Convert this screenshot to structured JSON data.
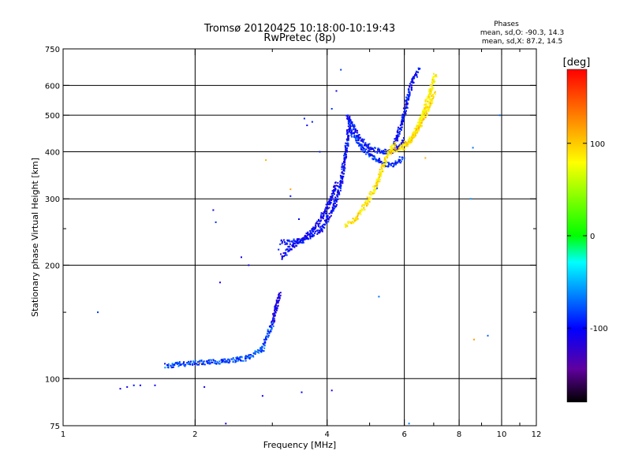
{
  "chart_data": {
    "type": "scatter",
    "title": "Tromsø 20120425 10:18:00-10:19:43",
    "subtitle": "RwPretec (8p)",
    "xlabel": "Frequency [MHz]",
    "ylabel": "Stationary phase Virtual Height [km]",
    "x_scale": "log",
    "y_scale": "log",
    "xlim": [
      1,
      12
    ],
    "ylim": [
      75,
      750
    ],
    "x_ticks": [
      1,
      2,
      4,
      6,
      8,
      10,
      12
    ],
    "x_minor_ticks": [
      3,
      5,
      7,
      9,
      11
    ],
    "y_ticks": [
      75,
      100,
      200,
      300,
      400,
      500,
      600,
      750
    ],
    "y_minor_ticks": [
      150,
      250
    ],
    "grid_x": [
      2,
      4,
      6,
      8,
      10
    ],
    "grid_y": [
      100,
      200,
      300,
      400,
      500,
      600
    ],
    "grid": true,
    "phases_title": "Phases",
    "phases_o": "mean, sd,O: -90.3, 14.3",
    "phases_x": "mean, sd,X: 87.2, 14.5",
    "colorbar": {
      "label": "[deg]",
      "range": [
        -180,
        180
      ],
      "ticks": [
        100,
        0,
        -100
      ],
      "colors": [
        "#ff0000",
        "#ff8000",
        "#ffff00",
        "#00ff00",
        "#00ffff",
        "#0000ff",
        "#6000a0",
        "#000000"
      ]
    },
    "series": [
      {
        "kind": "segment",
        "x": [
          1.72,
          1.82,
          2.0,
          2.3,
          2.6,
          2.85,
          3.0
        ],
        "y": [
          108,
          109,
          110,
          111,
          113,
          120,
          140
        ],
        "phase": -80
      },
      {
        "kind": "segment",
        "x": [
          3.0,
          3.05,
          3.1,
          3.12
        ],
        "y": [
          140,
          152,
          163,
          168
        ],
        "phase": -110
      },
      {
        "kind": "segment",
        "x": [
          3.15,
          3.5,
          3.9,
          4.15,
          4.3,
          4.42,
          4.5
        ],
        "y": [
          230,
          232,
          250,
          285,
          330,
          400,
          480
        ],
        "phase": -100
      },
      {
        "kind": "segment",
        "x": [
          3.15,
          3.3,
          3.55,
          3.8,
          4.05,
          4.2
        ],
        "y": [
          210,
          222,
          235,
          256,
          292,
          330
        ],
        "phase": -105
      },
      {
        "kind": "segment",
        "x": [
          4.45,
          4.7,
          5.0,
          5.3,
          5.6,
          5.8,
          6.0
        ],
        "y": [
          500,
          440,
          410,
          400,
          400,
          408,
          430
        ],
        "phase": -100
      },
      {
        "kind": "segment",
        "x": [
          4.5,
          4.8,
          5.1,
          5.4,
          5.7,
          5.95
        ],
        "y": [
          460,
          410,
          385,
          370,
          370,
          385
        ],
        "phase": -90
      },
      {
        "kind": "segment",
        "x": [
          5.7,
          5.9,
          6.1,
          6.3,
          6.5
        ],
        "y": [
          420,
          470,
          550,
          630,
          660
        ],
        "phase": -100
      },
      {
        "kind": "segment",
        "x": [
          4.4,
          4.65,
          4.95,
          5.2,
          5.45,
          5.7
        ],
        "y": [
          253,
          265,
          295,
          330,
          385,
          420
        ],
        "phase": 90
      },
      {
        "kind": "segment",
        "x": [
          6.0,
          6.3,
          6.6,
          6.85,
          7.05
        ],
        "y": [
          410,
          440,
          500,
          570,
          640
        ],
        "phase": 85
      },
      {
        "kind": "segment",
        "x": [
          5.6,
          5.9,
          6.2,
          6.5,
          6.8,
          7.0
        ],
        "y": [
          400,
          410,
          430,
          470,
          520,
          570
        ],
        "phase": 95
      },
      {
        "kind": "points",
        "x": [
          1.35,
          1.4,
          1.45,
          1.5,
          1.62,
          1.2,
          2.1,
          2.2,
          2.28,
          2.23,
          2.35,
          2.55,
          2.65,
          3.1,
          3.3,
          3.45,
          3.55,
          3.7,
          3.85,
          4.1,
          4.2,
          4.3,
          3.6,
          2.85,
          3.5,
          4.1
        ],
        "y": [
          94,
          95,
          96,
          96,
          96,
          150,
          95,
          280,
          180,
          260,
          76,
          210,
          200,
          220,
          305,
          265,
          490,
          480,
          400,
          520,
          580,
          660,
          470,
          90,
          92,
          93
        ],
        "phase": -100
      },
      {
        "kind": "points",
        "x": [
          8.6,
          9.3,
          8.5,
          9.9,
          5.25,
          6.15,
          5.2
        ],
        "y": [
          410,
          130,
          300,
          500,
          165,
          76,
          320
        ],
        "phase": -60
      },
      {
        "kind": "points",
        "x": [
          2.05,
          3.3,
          2.9,
          8.65,
          6.7
        ],
        "y": [
          110,
          318,
          380,
          127,
          385
        ],
        "phase": 120
      }
    ]
  }
}
